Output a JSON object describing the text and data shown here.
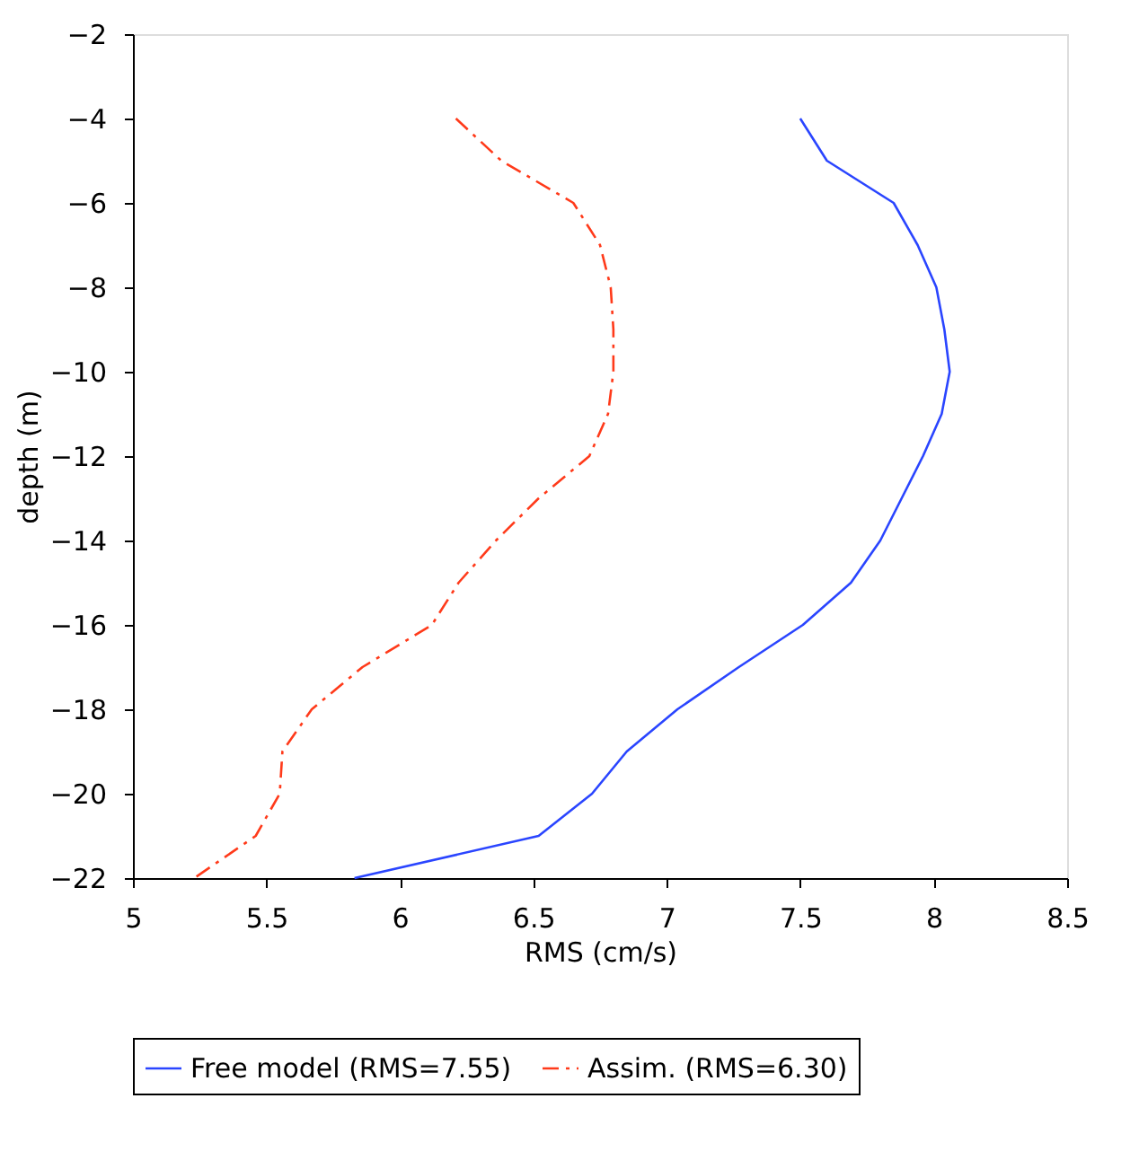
{
  "chart_data": {
    "type": "line",
    "xlabel": "RMS (cm/s)",
    "ylabel": "depth (m)",
    "xlim": [
      5,
      8.5
    ],
    "xticks": [
      5,
      5.5,
      6,
      6.5,
      7,
      7.5,
      8,
      8.5
    ],
    "ylim": [
      -22,
      -2
    ],
    "yticks": [
      -22,
      -20,
      -18,
      -16,
      -14,
      -12,
      -10,
      -8,
      -6,
      -4,
      -2
    ],
    "grid": false,
    "legend": "bottom",
    "marker": "none",
    "series": [
      {
        "name": "Free model (RMS=7.55)",
        "color": "#2a45ff",
        "line_style": "solid",
        "x": [
          7.5,
          7.6,
          7.85,
          7.94,
          8.01,
          8.04,
          8.06,
          8.03,
          7.96,
          7.88,
          7.8,
          7.69,
          7.51,
          7.27,
          7.04,
          6.85,
          6.72,
          6.52,
          5.83
        ],
        "values": [
          -4,
          -5,
          -6,
          -7,
          -8,
          -9,
          -10,
          -11,
          -12,
          -13,
          -14,
          -15,
          -16,
          -17,
          -18,
          -19,
          -20,
          -21,
          -22
        ]
      },
      {
        "name": "Assim. (RMS=6.30)",
        "color": "#ff3a1a",
        "line_style": "dashdot",
        "x": [
          6.21,
          6.38,
          6.65,
          6.75,
          6.79,
          6.8,
          6.8,
          6.78,
          6.71,
          6.52,
          6.36,
          6.22,
          6.12,
          5.86,
          5.67,
          5.56,
          5.55,
          5.46,
          5.23
        ],
        "values": [
          -4,
          -5,
          -6,
          -7,
          -8,
          -9,
          -10,
          -11,
          -12,
          -13,
          -14,
          -15,
          -16,
          -17,
          -18,
          -19,
          -20,
          -21,
          -22
        ]
      }
    ]
  }
}
